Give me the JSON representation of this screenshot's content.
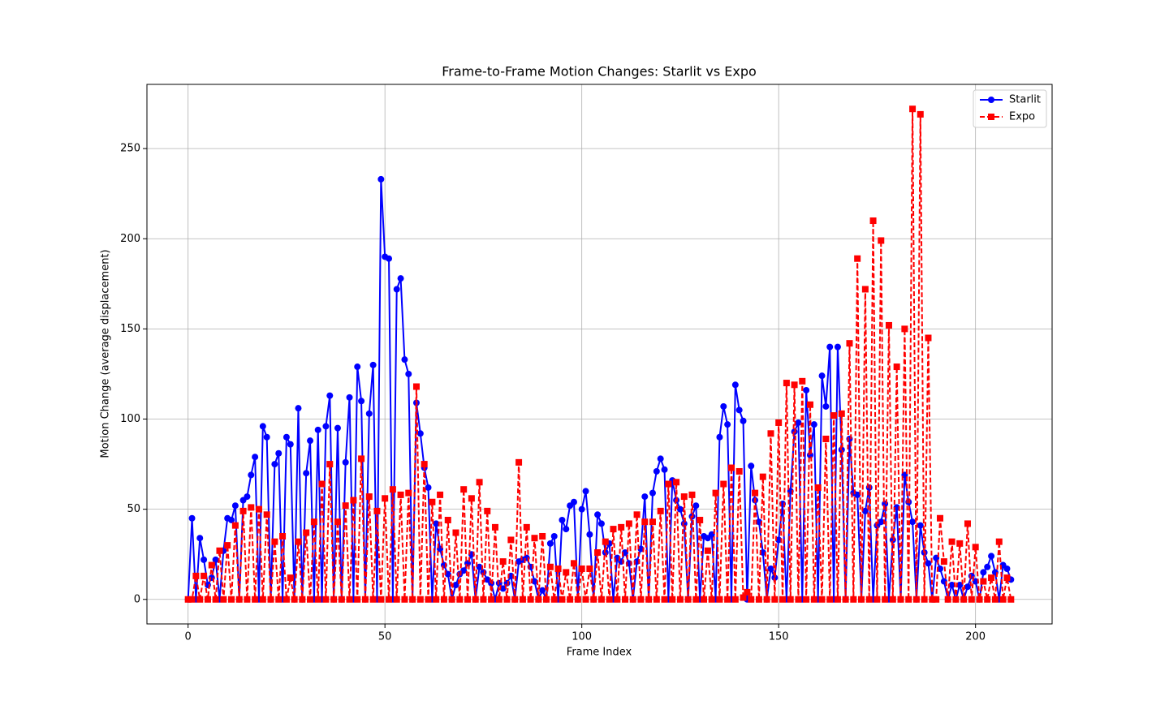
{
  "chart_data": {
    "type": "line",
    "title": "Frame-to-Frame Motion Changes: Starlit vs Expo",
    "x_label": "Frame Index",
    "y_label": "Motion Change (average displacement)",
    "xlim": [
      -10.45,
      219.45
    ],
    "xticks": [
      0,
      50,
      100,
      150,
      200
    ],
    "ylim": [
      -13.6,
      285.6
    ],
    "yticks": [
      0,
      50,
      100,
      150,
      200,
      250
    ],
    "grid": true,
    "legend": "upper-right",
    "series": [
      {
        "name": "Starlit",
        "color": "#0000ff",
        "marker": "circle",
        "linestyle": "solid",
        "values": [
          0,
          45,
          0,
          34,
          22,
          8,
          12,
          22,
          0,
          27,
          45,
          44,
          52,
          0,
          55,
          57,
          69,
          79,
          0,
          96,
          90,
          0,
          75,
          81,
          0,
          90,
          86,
          0,
          106,
          0,
          70,
          88,
          0,
          94,
          0,
          96,
          113,
          0,
          95,
          0,
          76,
          112,
          0,
          129,
          110,
          0,
          103,
          130,
          0,
          233,
          190,
          189,
          0,
          172,
          178,
          133,
          125,
          0,
          109,
          92,
          73,
          62,
          0,
          42,
          28,
          19,
          14,
          0,
          8,
          14,
          16,
          20,
          25,
          0,
          18,
          15,
          11,
          9,
          0,
          9,
          6,
          9,
          13,
          0,
          21,
          22,
          23,
          18,
          10,
          0,
          5,
          0,
          31,
          35,
          0,
          44,
          39,
          52,
          54,
          0,
          50,
          60,
          36,
          0,
          47,
          42,
          26,
          31,
          0,
          23,
          21,
          26,
          20,
          0,
          21,
          28,
          57,
          0,
          59,
          71,
          78,
          72,
          0,
          66,
          55,
          50,
          42,
          0,
          46,
          52,
          0,
          35,
          34,
          36,
          0,
          90,
          107,
          97,
          0,
          119,
          105,
          99,
          0,
          74,
          55,
          43,
          26,
          0,
          17,
          12,
          33,
          53,
          0,
          60,
          93,
          98,
          0,
          116,
          80,
          97,
          0,
          124,
          107,
          140,
          0,
          140,
          83,
          0,
          89,
          59,
          58,
          0,
          49,
          62,
          0,
          41,
          43,
          53,
          0,
          33,
          51,
          0,
          69,
          54,
          43,
          0,
          41,
          26,
          20,
          0,
          23,
          17,
          10,
          0,
          8,
          0,
          8,
          0,
          7,
          13,
          10,
          0,
          15,
          18,
          24,
          15,
          0,
          19,
          17,
          11
        ]
      },
      {
        "name": "Expo",
        "color": "#ff0000",
        "marker": "square",
        "linestyle": "dashed",
        "values": [
          0,
          0,
          13,
          0,
          13,
          0,
          19,
          0,
          27,
          0,
          30,
          0,
          41,
          0,
          49,
          0,
          51,
          0,
          50,
          0,
          47,
          0,
          32,
          0,
          35,
          0,
          12,
          0,
          32,
          0,
          37,
          0,
          43,
          0,
          64,
          0,
          75,
          0,
          43,
          0,
          52,
          0,
          55,
          0,
          78,
          0,
          57,
          0,
          49,
          0,
          56,
          0,
          61,
          0,
          58,
          0,
          59,
          0,
          118,
          0,
          75,
          0,
          54,
          0,
          58,
          0,
          44,
          0,
          37,
          0,
          61,
          0,
          56,
          0,
          65,
          0,
          49,
          0,
          40,
          0,
          21,
          0,
          33,
          0,
          76,
          0,
          40,
          0,
          34,
          0,
          35,
          0,
          18,
          0,
          17,
          0,
          15,
          0,
          20,
          0,
          17,
          0,
          17,
          0,
          26,
          0,
          32,
          0,
          39,
          0,
          40,
          0,
          42,
          0,
          47,
          0,
          43,
          0,
          43,
          0,
          49,
          0,
          64,
          0,
          65,
          0,
          57,
          0,
          58,
          0,
          44,
          0,
          27,
          0,
          59,
          0,
          64,
          0,
          73,
          0,
          71,
          1,
          4,
          0,
          59,
          0,
          68,
          0,
          92,
          0,
          98,
          0,
          120,
          0,
          119,
          0,
          121,
          0,
          108,
          0,
          62,
          0,
          89,
          0,
          102,
          0,
          103,
          0,
          142,
          0,
          189,
          0,
          172,
          0,
          210,
          0,
          199,
          0,
          152,
          0,
          129,
          0,
          150,
          0,
          272,
          0,
          269,
          0,
          145,
          0,
          0,
          45,
          21,
          0,
          32,
          0,
          31,
          0,
          42,
          0,
          29,
          0,
          10,
          0,
          12,
          0,
          32,
          0,
          12,
          0
        ]
      }
    ]
  }
}
